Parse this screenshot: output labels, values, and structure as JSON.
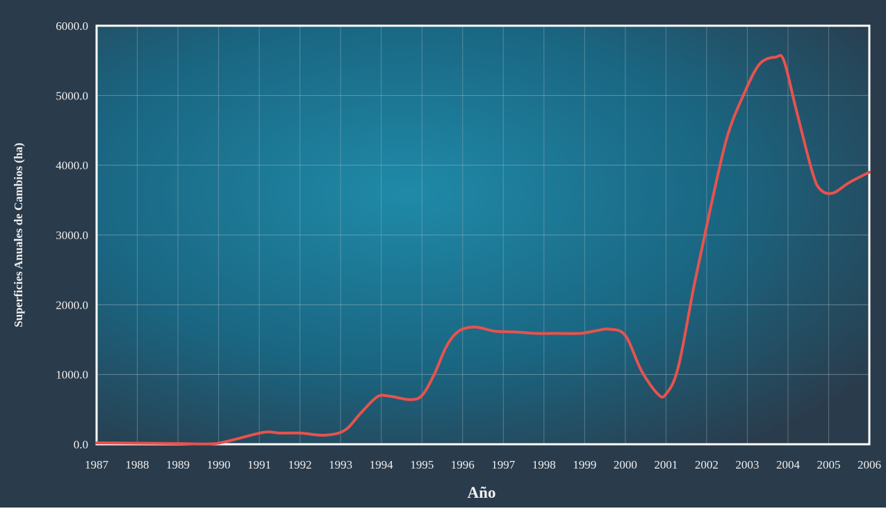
{
  "chart_data": {
    "type": "line",
    "title": "",
    "xlabel": "Año",
    "ylabel": "Superficies Anuales de Cambios (ha)",
    "x": [
      "1987",
      "1988",
      "1989",
      "1990",
      "1991",
      "1992",
      "1993",
      "1994",
      "1995",
      "1996",
      "1997",
      "1998",
      "1999",
      "2000",
      "2001",
      "2002",
      "2003",
      "2004",
      "2005",
      "2006"
    ],
    "y_ticks": [
      "0.0",
      "1000.0",
      "2000.0",
      "3000.0",
      "4000.0",
      "5000.0",
      "6000.0"
    ],
    "ylim": [
      0,
      6000
    ],
    "grid": true,
    "legend": "none",
    "series": [
      {
        "points": [
          [
            1987.0,
            20
          ],
          [
            1988.0,
            15
          ],
          [
            1989.0,
            10
          ],
          [
            1989.8,
            5
          ],
          [
            1990.2,
            40
          ],
          [
            1991.1,
            170
          ],
          [
            1991.5,
            160
          ],
          [
            1992.0,
            160
          ],
          [
            1992.6,
            130
          ],
          [
            1993.1,
            200
          ],
          [
            1993.5,
            450
          ],
          [
            1993.9,
            680
          ],
          [
            1994.2,
            690
          ],
          [
            1994.7,
            640
          ],
          [
            1995.0,
            700
          ],
          [
            1995.3,
            1000
          ],
          [
            1995.6,
            1400
          ],
          [
            1995.9,
            1620
          ],
          [
            1996.3,
            1680
          ],
          [
            1996.8,
            1620
          ],
          [
            1997.3,
            1610
          ],
          [
            1997.8,
            1590
          ],
          [
            1998.3,
            1590
          ],
          [
            1998.9,
            1590
          ],
          [
            1999.3,
            1630
          ],
          [
            1999.6,
            1650
          ],
          [
            2000.0,
            1560
          ],
          [
            2000.4,
            1050
          ],
          [
            2000.8,
            720
          ],
          [
            2001.0,
            720
          ],
          [
            2001.3,
            1100
          ],
          [
            2001.7,
            2300
          ],
          [
            2002.1,
            3400
          ],
          [
            2002.5,
            4400
          ],
          [
            2002.9,
            5000
          ],
          [
            2003.3,
            5450
          ],
          [
            2003.7,
            5550
          ],
          [
            2003.9,
            5500
          ],
          [
            2004.2,
            4800
          ],
          [
            2004.6,
            3900
          ],
          [
            2004.8,
            3650
          ],
          [
            2005.1,
            3600
          ],
          [
            2005.5,
            3750
          ],
          [
            2006.0,
            3900
          ]
        ]
      }
    ]
  },
  "colors": {
    "line": "#e8524d",
    "plot_center": "#1f8aa8",
    "plot_edge": "#2c3a4a",
    "text": "#f0f0f0",
    "grid": "#9fb3be"
  }
}
